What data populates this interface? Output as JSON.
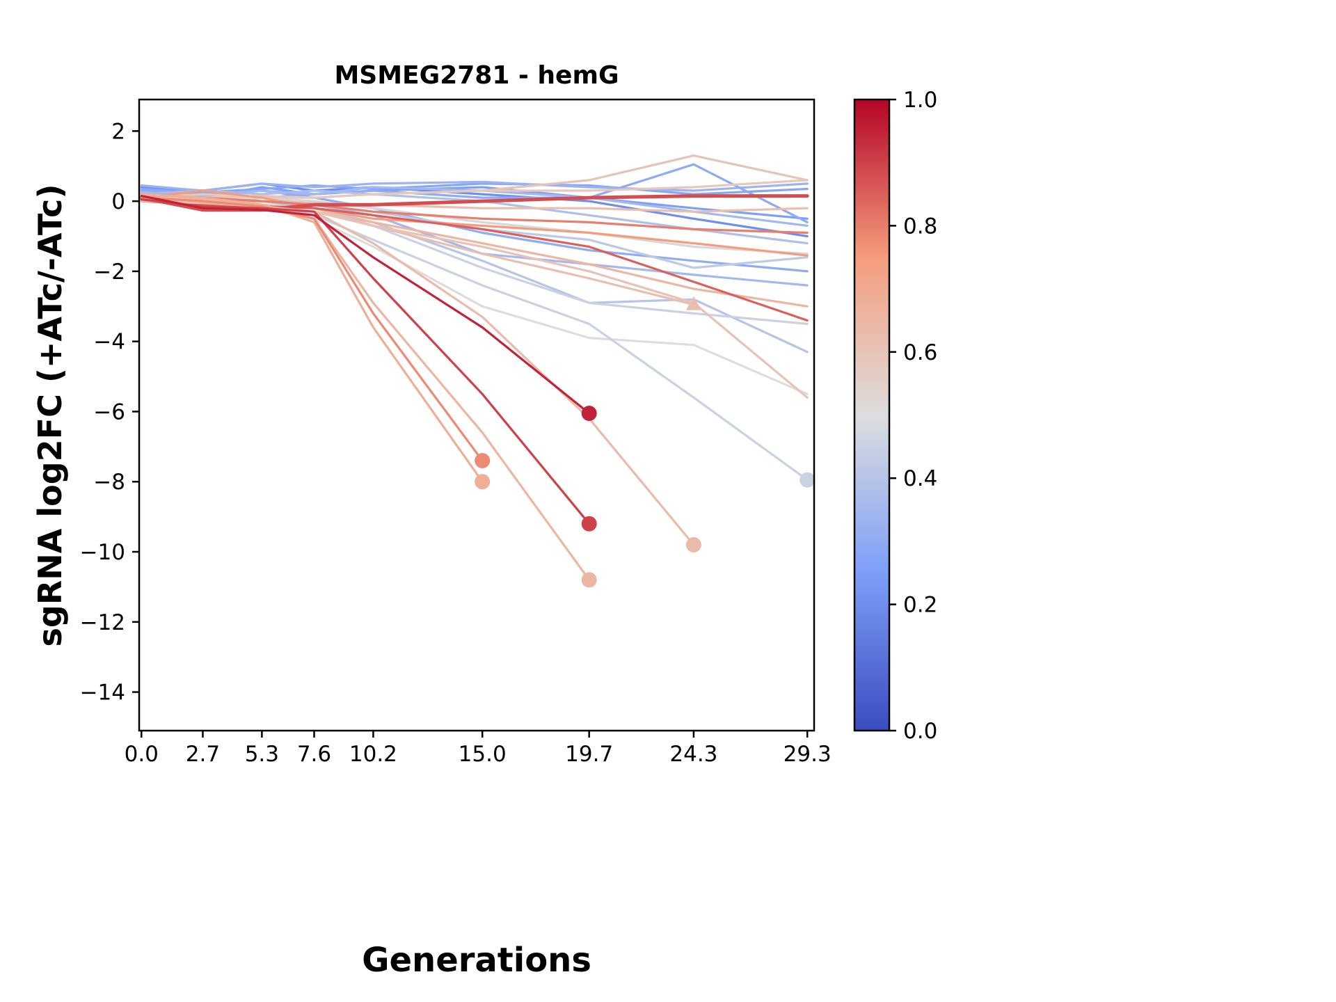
{
  "chart_data": {
    "type": "line",
    "title": "MSMEG2781 - hemG",
    "xlabel": "Generations",
    "ylabel": "sgRNA log2FC (+ATc/-ATc)",
    "x": [
      0.0,
      2.7,
      5.3,
      7.6,
      10.2,
      15.0,
      19.7,
      24.3,
      29.3
    ],
    "x_tick_labels": [
      "0.0",
      "2.7",
      "5.3",
      "7.6",
      "10.2",
      "15.0",
      "19.7",
      "24.3",
      "29.3"
    ],
    "y_tick_values": [
      2,
      0,
      -2,
      -4,
      -6,
      -8,
      -10,
      -12,
      -14
    ],
    "y_tick_labels": [
      "2",
      "0",
      "−2",
      "−4",
      "−6",
      "−8",
      "−10",
      "−12",
      "−14"
    ],
    "xlim": [
      -0.1,
      29.6
    ],
    "ylim": [
      -15.1,
      2.9
    ],
    "grid": false,
    "legend": "none",
    "colormap": {
      "name": "coolwarm",
      "anchors": [
        [
          0.0,
          "#3B4CC0"
        ],
        [
          0.25,
          "#7C9FF9"
        ],
        [
          0.5,
          "#DDDDDD"
        ],
        [
          0.75,
          "#F59C7D"
        ],
        [
          1.0,
          "#B40426"
        ]
      ]
    },
    "colorbar": {
      "vmin": 0.0,
      "vmax": 1.0,
      "tick_values": [
        1.0,
        0.8,
        0.6,
        0.4,
        0.2,
        0.0
      ],
      "tick_labels": [
        "1.0",
        "0.8",
        "0.6",
        "0.4",
        "0.2",
        "0.0"
      ],
      "position": "right"
    },
    "series": [
      {
        "c": 0.2,
        "marker": null,
        "y": [
          0.4,
          0.3,
          0.5,
          0.3,
          0.4,
          0.2,
          0.0,
          -0.5,
          -1.0
        ]
      },
      {
        "c": 0.25,
        "marker": null,
        "y": [
          0.3,
          0.1,
          0.4,
          0.2,
          0.3,
          0.4,
          0.1,
          -0.2,
          -0.5
        ]
      },
      {
        "c": 0.28,
        "marker": null,
        "y": [
          0.35,
          0.25,
          0.35,
          0.45,
          0.35,
          0.5,
          0.45,
          0.2,
          0.35
        ]
      },
      {
        "c": 0.33,
        "marker": null,
        "y": [
          0.45,
          0.3,
          0.5,
          0.4,
          0.5,
          0.55,
          0.4,
          0.3,
          0.5
        ]
      },
      {
        "c": 0.3,
        "marker": null,
        "y": [
          0.2,
          0.0,
          0.1,
          0.2,
          0.3,
          0.1,
          0.1,
          1.05,
          -0.6
        ]
      },
      {
        "c": 0.35,
        "marker": null,
        "y": [
          0.1,
          0.2,
          0.0,
          -0.1,
          -0.4,
          -1.5,
          -1.8,
          -2.1,
          -2.4
        ]
      },
      {
        "c": 0.3,
        "marker": null,
        "y": [
          0.3,
          0.2,
          0.3,
          0.1,
          -0.2,
          -0.9,
          -1.4,
          -1.7,
          -2.0
        ]
      },
      {
        "c": 0.38,
        "marker": null,
        "y": [
          0.2,
          0.3,
          0.2,
          0.3,
          0.2,
          0.0,
          -0.4,
          -0.8,
          -1.2
        ]
      },
      {
        "c": 0.35,
        "marker": null,
        "y": [
          0.25,
          0.15,
          0.3,
          0.2,
          0.4,
          0.3,
          0.1,
          -0.3,
          -0.7
        ]
      },
      {
        "c": 0.4,
        "marker": null,
        "y": [
          0.2,
          0.1,
          0.0,
          -0.2,
          -0.6,
          -1.7,
          -2.9,
          -2.8,
          -4.3
        ]
      },
      {
        "c": 0.42,
        "marker": null,
        "y": [
          0.1,
          0.0,
          0.1,
          -0.1,
          -0.3,
          -0.8,
          -1.1,
          -1.9,
          -1.6
        ]
      },
      {
        "c": 0.45,
        "marker": null,
        "y": [
          0.1,
          0.05,
          -0.1,
          -0.3,
          -0.7,
          -1.9,
          -2.9,
          -3.2,
          -3.5
        ]
      },
      {
        "c": 0.5,
        "marker": null,
        "y": [
          0.1,
          0.0,
          -0.2,
          -0.5,
          -1.3,
          -3.0,
          -3.9,
          -4.1,
          -5.5
        ]
      },
      {
        "c": 0.48,
        "marker": null,
        "y": [
          0.15,
          0.05,
          0.1,
          0.0,
          -0.2,
          -0.6,
          -0.9,
          -1.3,
          -1.5
        ]
      },
      {
        "c": 0.45,
        "marker": "circle",
        "y": [
          0.1,
          0.0,
          -0.15,
          -0.4,
          -1.1,
          -2.4,
          -3.5,
          -5.6,
          -7.95
        ]
      },
      {
        "c": 0.6,
        "marker": null,
        "y": [
          0.2,
          0.1,
          0.15,
          0.1,
          0.2,
          0.3,
          0.6,
          1.3,
          0.6
        ]
      },
      {
        "c": 0.58,
        "marker": null,
        "y": [
          0.1,
          0.2,
          0.1,
          0.1,
          0.2,
          0.3,
          0.3,
          0.4,
          0.6
        ]
      },
      {
        "c": 0.62,
        "marker": null,
        "y": [
          0.0,
          -0.1,
          0.0,
          -0.05,
          -0.1,
          -0.2,
          -0.2,
          -0.3,
          -0.2
        ]
      },
      {
        "c": 0.65,
        "marker": null,
        "y": [
          0.05,
          0.0,
          -0.2,
          -0.3,
          -0.6,
          -1.2,
          -1.8,
          -2.5,
          -3.0
        ]
      },
      {
        "c": 0.62,
        "marker": "triangle",
        "y": [
          0.05,
          0.0,
          -0.1,
          -0.2,
          -0.7,
          -1.5,
          -2.2,
          -2.95
        ]
      },
      {
        "c": 0.6,
        "marker": null,
        "y": [
          0.05,
          0.0,
          -0.1,
          -0.3,
          -0.7,
          -1.3,
          -2.0,
          -2.9,
          -5.6
        ]
      },
      {
        "c": 0.75,
        "marker": null,
        "y": [
          0.1,
          0.3,
          0.1,
          -0.2,
          -0.5,
          -0.7,
          -0.9,
          -1.2,
          -1.55
        ]
      },
      {
        "c": 0.8,
        "marker": null,
        "y": [
          0.2,
          0.1,
          0.0,
          -0.1,
          -0.3,
          -0.5,
          -0.6,
          -0.8,
          -0.9
        ]
      },
      {
        "c": 0.85,
        "marker": null,
        "y": [
          0.0,
          -0.1,
          -0.15,
          -0.2,
          -0.4,
          -0.8,
          -1.3,
          -2.3,
          -3.4
        ]
      },
      {
        "c": 0.88,
        "marker": null,
        "lw": 5,
        "y": [
          0.1,
          -0.25,
          -0.25,
          -0.1,
          -0.1,
          0.0,
          0.1,
          0.15,
          0.15
        ]
      },
      {
        "c": 0.63,
        "marker": "circle",
        "y": [
          0.0,
          -0.05,
          -0.15,
          -0.3,
          -1.2,
          -3.3,
          -6.2,
          -9.8
        ]
      },
      {
        "c": 0.65,
        "marker": "circle",
        "y": [
          0.1,
          0.05,
          -0.1,
          -0.5,
          -2.9,
          -6.6,
          -10.8
        ]
      },
      {
        "c": 0.68,
        "marker": "circle",
        "y": [
          0.2,
          0.1,
          -0.1,
          -0.6,
          -3.6,
          -8.0
        ]
      },
      {
        "c": 0.78,
        "marker": "circle",
        "y": [
          0.1,
          0.0,
          -0.15,
          -0.5,
          -3.2,
          -7.4
        ]
      },
      {
        "c": 0.9,
        "marker": "circle",
        "y": [
          0.05,
          -0.15,
          -0.2,
          -0.3,
          -2.2,
          -5.5,
          -9.2
        ]
      },
      {
        "c": 0.95,
        "marker": "circle",
        "y": [
          0.15,
          -0.2,
          -0.25,
          -0.4,
          -1.6,
          -3.6,
          -6.05
        ]
      }
    ]
  }
}
